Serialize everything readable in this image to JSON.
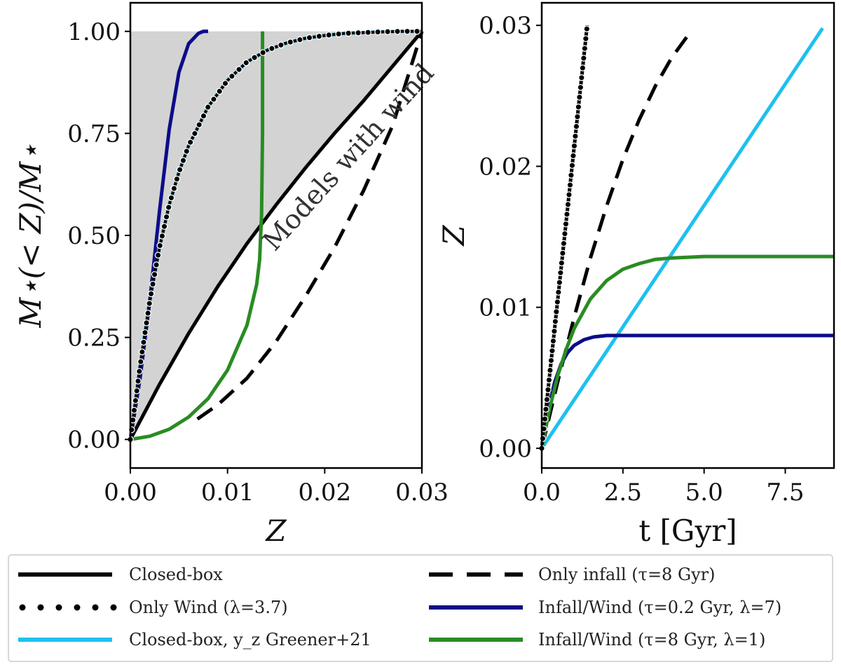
{
  "chart_data": [
    {
      "type": "line",
      "panel": "left",
      "xlabel": "Z",
      "ylabel": "M⋆(< Z)/M⋆",
      "xlim": [
        0,
        0.03
      ],
      "ylim": [
        -0.07,
        1.07
      ],
      "xticks": [
        "0.00",
        "0.01",
        "0.02",
        "0.03"
      ],
      "xtick_values": [
        0,
        0.01,
        0.02,
        0.03
      ],
      "yticks": [
        "0.00",
        "0.25",
        "0.50",
        "0.75",
        "1.00"
      ],
      "ytick_values": [
        0,
        0.25,
        0.5,
        0.75,
        1.0
      ],
      "annotation": "Models with wind",
      "shaded_region": "between closed-box curve and 1.00",
      "series": [
        {
          "name": "Closed-box",
          "style": "solid",
          "color": "#000000",
          "x": [
            0,
            0.003,
            0.006,
            0.009,
            0.012,
            0.015,
            0.018,
            0.021,
            0.024,
            0.027,
            0.03
          ],
          "y": [
            0,
            0.135,
            0.26,
            0.375,
            0.48,
            0.575,
            0.665,
            0.75,
            0.83,
            0.915,
            1.0
          ]
        },
        {
          "name": "Only infall (τ=8 Gyr)",
          "style": "dashed",
          "color": "#000000",
          "x": [
            0.0069,
            0.009,
            0.012,
            0.015,
            0.018,
            0.021,
            0.024,
            0.027,
            0.03
          ],
          "y": [
            0.05,
            0.085,
            0.15,
            0.24,
            0.35,
            0.47,
            0.61,
            0.77,
            1.0
          ]
        },
        {
          "name": "Only Wind (λ=3.7)",
          "style": "dotted",
          "color": "#000000",
          "x": [
            0,
            0.001,
            0.002,
            0.003,
            0.004,
            0.005,
            0.006,
            0.008,
            0.01,
            0.012,
            0.014,
            0.016,
            0.018,
            0.02,
            0.022,
            0.024,
            0.026,
            0.028,
            0.03
          ],
          "y": [
            0,
            0.18,
            0.34,
            0.47,
            0.575,
            0.655,
            0.72,
            0.815,
            0.88,
            0.925,
            0.953,
            0.971,
            0.983,
            0.99,
            0.995,
            0.997,
            0.999,
            1.0,
            1.0
          ]
        },
        {
          "name": "Closed-box, y_z Greener+21",
          "style": "solid",
          "color": "#1ec0f0",
          "x": [
            0,
            0.001,
            0.002,
            0.003,
            0.004,
            0.005,
            0.006,
            0.008,
            0.01,
            0.012,
            0.014,
            0.016,
            0.018,
            0.02,
            0.022,
            0.024,
            0.026,
            0.028,
            0.03
          ],
          "y": [
            0,
            0.18,
            0.34,
            0.47,
            0.575,
            0.655,
            0.72,
            0.815,
            0.88,
            0.925,
            0.953,
            0.971,
            0.983,
            0.99,
            0.995,
            0.997,
            0.999,
            1.0,
            1.0
          ]
        },
        {
          "name": "Infall/Wind (τ=0.2 Gyr, λ=7)",
          "style": "solid",
          "color": "#0c0c8a",
          "x": [
            0,
            0.001,
            0.002,
            0.003,
            0.004,
            0.005,
            0.006,
            0.007,
            0.0075,
            0.008
          ],
          "y": [
            0,
            0.15,
            0.34,
            0.56,
            0.76,
            0.9,
            0.97,
            0.995,
            1.0,
            1.0
          ]
        },
        {
          "name": "Infall/Wind (τ=8 Gyr, λ=1)",
          "style": "solid",
          "color": "#2a8c22",
          "x": [
            0,
            0.002,
            0.004,
            0.006,
            0.008,
            0.01,
            0.012,
            0.013,
            0.0133,
            0.0135,
            0.0136,
            0.0136
          ],
          "y": [
            0,
            0.008,
            0.025,
            0.055,
            0.1,
            0.17,
            0.28,
            0.38,
            0.44,
            0.55,
            0.75,
            1.0
          ]
        }
      ]
    },
    {
      "type": "line",
      "panel": "right",
      "xlabel": "t [Gyr]",
      "ylabel": "Z",
      "xlim": [
        0,
        9
      ],
      "ylim": [
        -0.0014,
        0.0316
      ],
      "xticks": [
        "0.0",
        "2.5",
        "5.0",
        "7.5"
      ],
      "xtick_values": [
        0,
        2.5,
        5,
        7.5
      ],
      "yticks": [
        "0.00",
        "0.01",
        "0.02",
        "0.03"
      ],
      "ytick_values": [
        0,
        0.01,
        0.02,
        0.03
      ],
      "series": [
        {
          "name": "Closed-box",
          "style": "solid",
          "color": "#000000",
          "x": [
            0,
            0.5,
            1.0,
            1.4
          ],
          "y": [
            0,
            0.0107,
            0.0214,
            0.03
          ]
        },
        {
          "name": "Only infall (τ=8 Gyr)",
          "style": "dashed",
          "color": "#000000",
          "x": [
            0,
            0.5,
            1.0,
            1.5,
            2.0,
            2.5,
            3.0,
            3.5,
            4.0,
            4.6
          ],
          "y": [
            0,
            0.0048,
            0.0093,
            0.0135,
            0.0172,
            0.0205,
            0.0233,
            0.0257,
            0.0277,
            0.0296
          ]
        },
        {
          "name": "Only Wind (λ=3.7)",
          "style": "dotted",
          "color": "#000000",
          "x": [
            0,
            0.2,
            0.4,
            0.6,
            0.8,
            1.0,
            1.2,
            1.4
          ],
          "y": [
            0,
            0.0043,
            0.0086,
            0.0129,
            0.0171,
            0.0214,
            0.0257,
            0.03
          ]
        },
        {
          "name": "Closed-box, y_z Greener+21",
          "style": "solid",
          "color": "#1ec0f0",
          "x": [
            0,
            8.65
          ],
          "y": [
            0,
            0.0298
          ]
        },
        {
          "name": "Infall/Wind (τ=0.2 Gyr, λ=7)",
          "style": "solid",
          "color": "#0c0c8a",
          "x": [
            0,
            0.2,
            0.4,
            0.6,
            0.8,
            1.0,
            1.3,
            1.6,
            2.0,
            2.5,
            3.0,
            4.0,
            5.0,
            6.0,
            7.0,
            8.0,
            9.0
          ],
          "y": [
            0,
            0.0028,
            0.0047,
            0.006,
            0.0068,
            0.0073,
            0.0077,
            0.0079,
            0.008,
            0.008,
            0.008,
            0.008,
            0.008,
            0.008,
            0.008,
            0.008,
            0.008
          ]
        },
        {
          "name": "Infall/Wind (τ=8 Gyr, λ=1)",
          "style": "solid",
          "color": "#2a8c22",
          "x": [
            0,
            0.25,
            0.5,
            0.75,
            1.0,
            1.5,
            2.0,
            2.5,
            3.0,
            3.5,
            4.0,
            5.0,
            6.0,
            7.0,
            8.0,
            9.0
          ],
          "y": [
            0,
            0.0029,
            0.0052,
            0.007,
            0.0085,
            0.0106,
            0.0119,
            0.0127,
            0.0131,
            0.0134,
            0.0135,
            0.0136,
            0.0136,
            0.0136,
            0.0136,
            0.0136
          ]
        }
      ]
    }
  ],
  "legend": {
    "placement": "bottom",
    "entries": [
      {
        "label": "Closed-box",
        "style": "solid",
        "color": "#000000"
      },
      {
        "label": "Only infall (τ=8 Gyr)",
        "style": "dashed",
        "color": "#000000"
      },
      {
        "label": "Only Wind (λ=3.7)",
        "style": "dotted",
        "color": "#000000"
      },
      {
        "label": "Infall/Wind (τ=0.2 Gyr, λ=7)",
        "style": "solid",
        "color": "#0c0c8a"
      },
      {
        "label": "Closed-box, y_z Greener+21",
        "style": "solid",
        "color": "#1ec0f0"
      },
      {
        "label": "Infall/Wind (τ=8 Gyr, λ=1)",
        "style": "solid",
        "color": "#2a8c22"
      }
    ]
  },
  "colors": {
    "shade": "#d3d3d3",
    "axes": "#000000"
  }
}
